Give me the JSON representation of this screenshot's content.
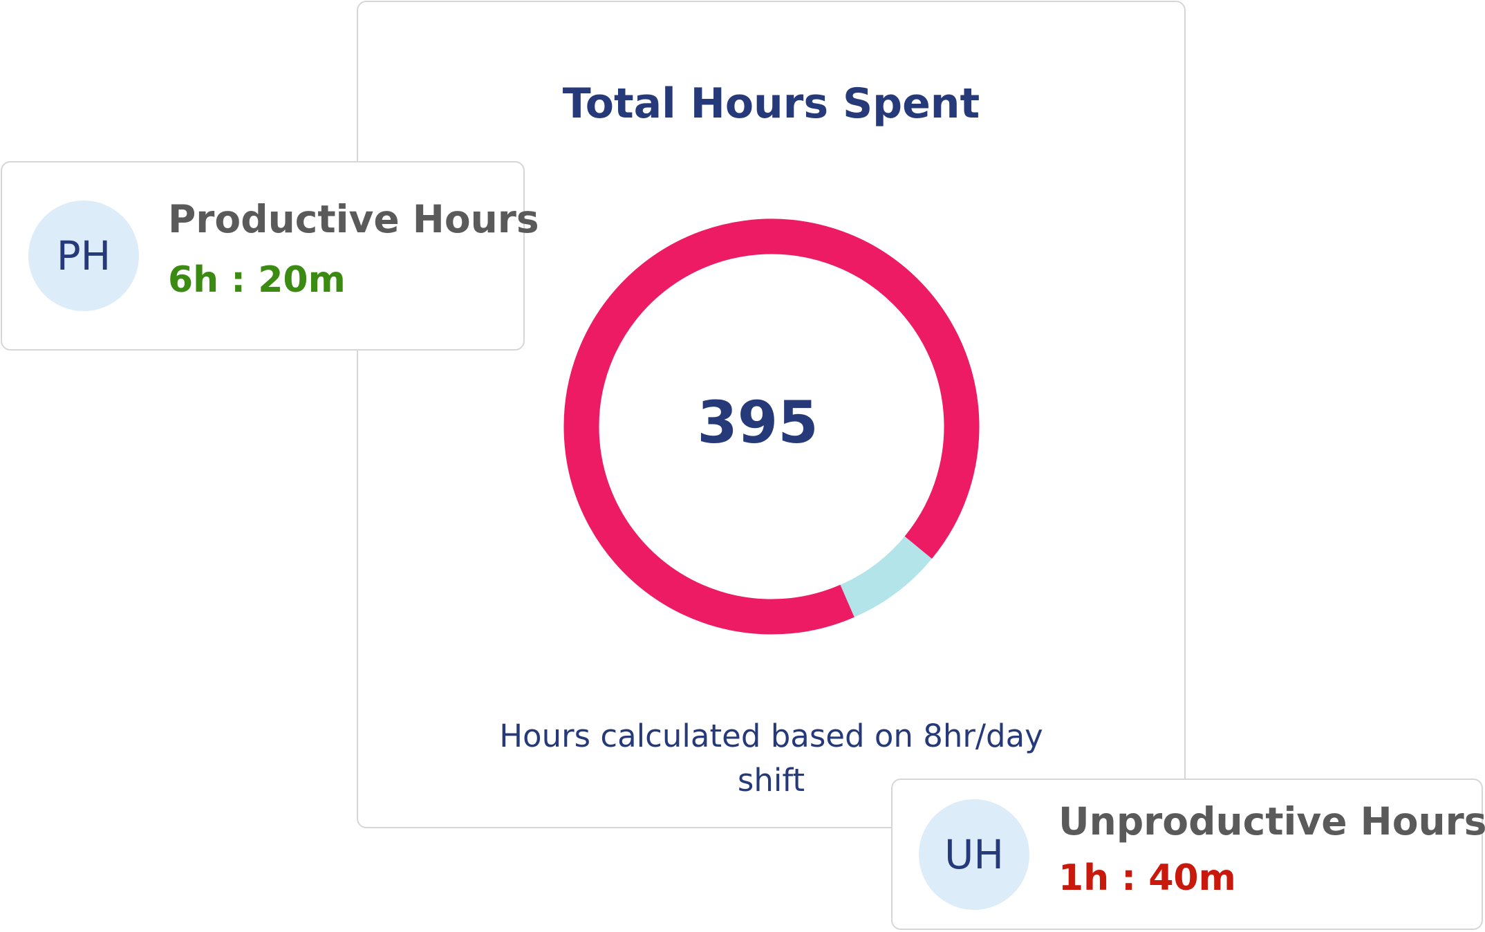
{
  "chart_data": {
    "type": "donut",
    "title": "Total Hours Spent",
    "center_value": 395,
    "values": [
      92.5,
      7.5
    ],
    "colors": [
      "#ec1b64",
      "#b2e4ea"
    ],
    "note": "Hours calculated based on 8hr/day shift"
  },
  "cards": [
    {
      "initials": "PH",
      "label": "Productive Hours",
      "value": "6h : 20m",
      "color": "#3b8a12"
    },
    {
      "initials": "UH",
      "label": "Unproductive Hours",
      "value": "1h : 40m",
      "color": "#c9190d"
    }
  ]
}
